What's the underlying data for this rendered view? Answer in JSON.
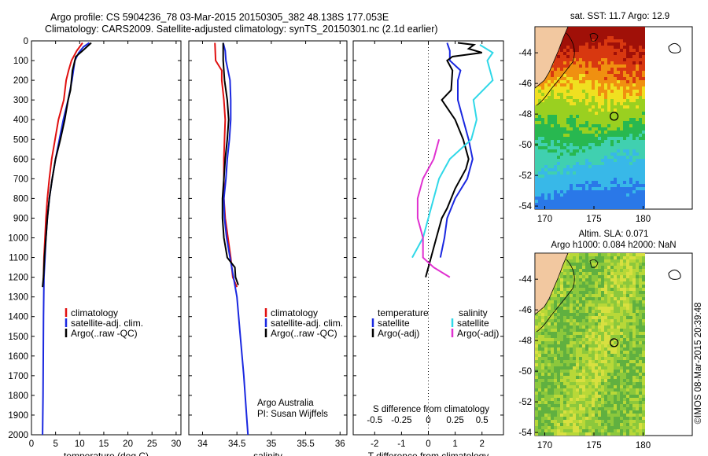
{
  "header": {
    "line1": "Argo profile: CS 5904236_78 03-Mar-2015 20150305_382 48.138S 177.053E",
    "line2": "Climatology: CARS2009. Satellite-adjusted climatology: synTS_20150301.nc (2.1d earlier)"
  },
  "colors": {
    "climatology": "#e01010",
    "satellite_clim": "#1a28e0",
    "argo": "#000000",
    "satellite_sal": "#30d8e8",
    "argo_sal": "#e030d0",
    "land": "#f2c8a0"
  },
  "chart_data": [
    {
      "type": "line",
      "id": "temperature_profile",
      "xlabel": "temperature (deg C)",
      "xlim": [
        0,
        31
      ],
      "ylim": [
        0,
        2000
      ],
      "xticks": [
        "0",
        "5",
        "10",
        "15",
        "20",
        "25",
        "30"
      ],
      "yticks": [
        "0",
        "100",
        "200",
        "300",
        "400",
        "500",
        "600",
        "700",
        "800",
        "900",
        "1000",
        "1100",
        "1200",
        "1300",
        "1400",
        "1500",
        "1600",
        "1700",
        "1800",
        "1900",
        "2000"
      ],
      "legend": [
        "climatology",
        "satellite-adj. clim.",
        "Argo(..raw -QC)"
      ],
      "series": [
        {
          "name": "climatology",
          "points": [
            [
              10.6,
              10
            ],
            [
              9.4,
              50
            ],
            [
              8.3,
              100
            ],
            [
              7.7,
              150
            ],
            [
              7.2,
              200
            ],
            [
              6.7,
              300
            ],
            [
              5.6,
              400
            ],
            [
              4.9,
              500
            ],
            [
              4.2,
              600
            ],
            [
              3.7,
              700
            ],
            [
              3.3,
              800
            ],
            [
              3.0,
              900
            ],
            [
              2.8,
              1000
            ],
            [
              2.6,
              1100
            ],
            [
              2.5,
              1200
            ],
            [
              2.4,
              1250
            ]
          ]
        },
        {
          "name": "satellite-adj. clim.",
          "points": [
            [
              12.0,
              10
            ],
            [
              10.8,
              30
            ],
            [
              9.8,
              60
            ],
            [
              9.0,
              100
            ],
            [
              8.4,
              200
            ],
            [
              7.6,
              300
            ],
            [
              6.6,
              400
            ],
            [
              5.8,
              500
            ],
            [
              5.0,
              600
            ],
            [
              4.3,
              700
            ],
            [
              3.7,
              800
            ],
            [
              3.3,
              900
            ],
            [
              3.0,
              1000
            ],
            [
              2.8,
              1100
            ],
            [
              2.6,
              1200
            ],
            [
              2.5,
              1400
            ],
            [
              2.45,
              1600
            ],
            [
              2.4,
              1800
            ],
            [
              2.3,
              2000
            ]
          ]
        },
        {
          "name": "Argo(..raw -QC)",
          "points": [
            [
              12.4,
              10
            ],
            [
              11.5,
              30
            ],
            [
              10.6,
              50
            ],
            [
              9.2,
              80
            ],
            [
              8.5,
              150
            ],
            [
              8.1,
              250
            ],
            [
              7.6,
              300
            ],
            [
              6.9,
              400
            ],
            [
              6.0,
              500
            ],
            [
              5.0,
              600
            ],
            [
              4.3,
              700
            ],
            [
              3.7,
              800
            ],
            [
              3.3,
              900
            ],
            [
              3.0,
              1000
            ],
            [
              2.7,
              1100
            ],
            [
              2.5,
              1200
            ],
            [
              2.3,
              1250
            ]
          ]
        }
      ]
    },
    {
      "type": "line",
      "id": "salinity_profile",
      "xlabel": "salinity",
      "xlim": [
        33.8,
        36.1
      ],
      "ylim": [
        0,
        2000
      ],
      "xticks": [
        "34",
        "34.5",
        "35",
        "35.5",
        "36"
      ],
      "legend": [
        "climatology",
        "satellite-adj. clim.",
        "Argo(..raw -QC)"
      ],
      "annotation": [
        "Argo Australia",
        "PI: Susan Wijffels"
      ],
      "series": [
        {
          "name": "climatology",
          "points": [
            [
              34.18,
              10
            ],
            [
              34.19,
              100
            ],
            [
              34.28,
              150
            ],
            [
              34.28,
              200
            ],
            [
              34.31,
              300
            ],
            [
              34.33,
              400
            ],
            [
              34.32,
              500
            ],
            [
              34.31,
              600
            ],
            [
              34.31,
              700
            ],
            [
              34.31,
              800
            ],
            [
              34.33,
              900
            ],
            [
              34.37,
              1000
            ],
            [
              34.41,
              1100
            ],
            [
              34.44,
              1200
            ],
            [
              34.5,
              1250
            ]
          ]
        },
        {
          "name": "satellite-adj. clim.",
          "points": [
            [
              34.3,
              10
            ],
            [
              34.33,
              50
            ],
            [
              34.34,
              100
            ],
            [
              34.4,
              200
            ],
            [
              34.41,
              300
            ],
            [
              34.41,
              400
            ],
            [
              34.39,
              500
            ],
            [
              34.36,
              600
            ],
            [
              34.34,
              700
            ],
            [
              34.31,
              800
            ],
            [
              34.32,
              900
            ],
            [
              34.35,
              1000
            ],
            [
              34.4,
              1100
            ],
            [
              34.45,
              1200
            ],
            [
              34.5,
              1300
            ],
            [
              34.55,
              1500
            ],
            [
              34.6,
              1700
            ],
            [
              34.64,
              1900
            ],
            [
              34.66,
              2000
            ]
          ]
        },
        {
          "name": "Argo(..raw -QC)",
          "points": [
            [
              34.3,
              10
            ],
            [
              34.3,
              50
            ],
            [
              34.3,
              100
            ],
            [
              34.32,
              200
            ],
            [
              34.36,
              300
            ],
            [
              34.38,
              400
            ],
            [
              34.36,
              500
            ],
            [
              34.33,
              600
            ],
            [
              34.31,
              700
            ],
            [
              34.29,
              800
            ],
            [
              34.29,
              900
            ],
            [
              34.31,
              1000
            ],
            [
              34.36,
              1100
            ],
            [
              34.47,
              1150
            ],
            [
              34.48,
              1200
            ],
            [
              34.52,
              1240
            ]
          ]
        }
      ]
    },
    {
      "type": "line",
      "id": "difference_profile",
      "xlabel": "T difference from climatology",
      "xlabel_top": "S difference from climatology",
      "xlim": [
        -2.8,
        2.8
      ],
      "ylim": [
        0,
        2000
      ],
      "xticks": [
        "-2",
        "-1",
        "0",
        "1",
        "2"
      ],
      "xticks_top": [
        "-0.5",
        "-0.25",
        "0",
        "0.25",
        "0.5"
      ],
      "legend_temperature_title": "temperature",
      "legend_salinity_title": "salinity",
      "legend_temperature": [
        "satellite",
        "Argo(-adj)"
      ],
      "legend_salinity": [
        "satellite",
        "Argo(-adj)"
      ],
      "series": [
        {
          "name": "temperature satellite",
          "points": [
            [
              0.7,
              10
            ],
            [
              0.8,
              50
            ],
            [
              0.8,
              100
            ],
            [
              1.2,
              150
            ],
            [
              1.1,
              200
            ],
            [
              1.1,
              300
            ],
            [
              1.3,
              400
            ],
            [
              1.5,
              500
            ],
            [
              1.65,
              600
            ],
            [
              1.45,
              700
            ],
            [
              1.0,
              800
            ],
            [
              0.7,
              900
            ],
            [
              0.6,
              1000
            ],
            [
              0.45,
              1100
            ]
          ]
        },
        {
          "name": "temperature Argo(-adj)",
          "points": [
            [
              1.1,
              10
            ],
            [
              1.7,
              20
            ],
            [
              1.5,
              40
            ],
            [
              2.0,
              60
            ],
            [
              0.9,
              80
            ],
            [
              0.7,
              100
            ],
            [
              0.9,
              150
            ],
            [
              0.85,
              250
            ],
            [
              0.5,
              300
            ],
            [
              1.0,
              400
            ],
            [
              1.3,
              500
            ],
            [
              1.5,
              600
            ],
            [
              1.4,
              650
            ],
            [
              1.0,
              750
            ],
            [
              0.7,
              850
            ],
            [
              0.5,
              900
            ],
            [
              0.3,
              1000
            ],
            [
              0.1,
              1100
            ],
            [
              -0.1,
              1200
            ]
          ]
        },
        {
          "name": "salinity satellite",
          "points": [
            [
              0.48,
              20
            ],
            [
              0.6,
              60
            ],
            [
              0.55,
              100
            ],
            [
              0.6,
              200
            ],
            [
              0.42,
              300
            ],
            [
              0.45,
              400
            ],
            [
              0.4,
              500
            ],
            [
              0.2,
              600
            ],
            [
              0.1,
              700
            ],
            [
              0.05,
              800
            ],
            [
              0.0,
              900
            ],
            [
              -0.05,
              1000
            ],
            [
              -0.15,
              1100
            ]
          ]
        },
        {
          "name": "salinity Argo(-adj)",
          "points": [
            [
              0.1,
              500
            ],
            [
              0.05,
              600
            ],
            [
              -0.05,
              700
            ],
            [
              -0.1,
              800
            ],
            [
              -0.1,
              900
            ],
            [
              -0.05,
              1000
            ],
            [
              -0.05,
              1100
            ],
            [
              0.05,
              1150
            ],
            [
              0.2,
              1200
            ]
          ]
        }
      ]
    },
    {
      "type": "heatmap",
      "id": "sst_map",
      "title": "sat. SST: 11.7 Argo: 12.9",
      "xlim": [
        169,
        185
      ],
      "ylim": [
        -54.2,
        -42.3
      ],
      "xticks": [
        "170",
        "175",
        "180"
      ],
      "yticks": [
        "-44",
        "-46",
        "-48",
        "-50",
        "-52",
        "-54"
      ],
      "argo_position": [
        177.05,
        -48.14
      ]
    },
    {
      "type": "heatmap",
      "id": "sla_map",
      "title": "Altim. SLA: 0.071",
      "subtitle": "Argo h1000: 0.084 h2000: NaN",
      "xlim": [
        169,
        185
      ],
      "ylim": [
        -54.2,
        -42.3
      ],
      "xticks": [
        "170",
        "175",
        "180"
      ],
      "yticks": [
        "-44",
        "-46",
        "-48",
        "-50",
        "-52",
        "-54"
      ],
      "argo_position": [
        177.05,
        -48.14
      ]
    }
  ],
  "side_label": "©IMOS 08-Mar-2015 20:39:48"
}
